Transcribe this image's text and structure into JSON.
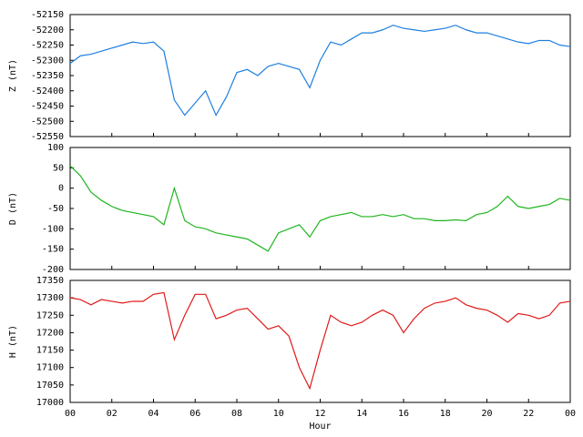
{
  "chart_data": [
    {
      "type": "line",
      "ylabel": "Z (nT)",
      "xlim": [
        0,
        24
      ],
      "ylim": [
        -52550,
        -52150
      ],
      "yticks": [
        -52150,
        -52200,
        -52250,
        -52300,
        -52350,
        -52400,
        -52450,
        -52500,
        -52550
      ],
      "x": [
        0,
        0.5,
        1,
        1.5,
        2,
        2.5,
        3,
        3.5,
        4,
        4.5,
        5,
        5.5,
        6,
        6.5,
        7,
        7.5,
        8,
        8.5,
        9,
        9.5,
        10,
        10.5,
        11,
        11.5,
        12,
        12.5,
        13,
        13.5,
        14,
        14.5,
        15,
        15.5,
        16,
        16.5,
        17,
        17.5,
        18,
        18.5,
        19,
        19.5,
        20,
        20.5,
        21,
        21.5,
        22,
        22.5,
        23,
        23.5,
        24
      ],
      "series": [
        {
          "color": "#1e7fe0",
          "values": [
            -52310,
            -52285,
            -52280,
            -52270,
            -52260,
            -52250,
            -52240,
            -52245,
            -52240,
            -52270,
            -52430,
            -52480,
            -52440,
            -52400,
            -52480,
            -52420,
            -52340,
            -52330,
            -52350,
            -52320,
            -52310,
            -52320,
            -52330,
            -52390,
            -52300,
            -52240,
            -52250,
            -52230,
            -52210,
            -52210,
            -52200,
            -52185,
            -52195,
            -52200,
            -52205,
            -52200,
            -52195,
            -52185,
            -52200,
            -52210,
            -52210,
            -52220,
            -52230,
            -52240,
            -52245,
            -52235,
            -52235,
            -52250,
            -52255
          ]
        }
      ]
    },
    {
      "type": "line",
      "ylabel": "D (nT)",
      "xlim": [
        0,
        24
      ],
      "ylim": [
        -200,
        100
      ],
      "yticks": [
        100,
        50,
        0,
        -50,
        -100,
        -150,
        -200
      ],
      "x": [
        0,
        0.5,
        1,
        1.5,
        2,
        2.5,
        3,
        3.5,
        4,
        4.5,
        5,
        5.5,
        6,
        6.5,
        7,
        7.5,
        8,
        8.5,
        9,
        9.5,
        10,
        10.5,
        11,
        11.5,
        12,
        12.5,
        13,
        13.5,
        14,
        14.5,
        15,
        15.5,
        16,
        16.5,
        17,
        17.5,
        18,
        18.5,
        19,
        19.5,
        20,
        20.5,
        21,
        21.5,
        22,
        22.5,
        23,
        23.5,
        24
      ],
      "series": [
        {
          "color": "#1fb51f",
          "values": [
            55,
            30,
            -10,
            -30,
            -45,
            -55,
            -60,
            -65,
            -70,
            -90,
            0,
            -80,
            -95,
            -100,
            -110,
            -115,
            -120,
            -125,
            -140,
            -155,
            -110,
            -100,
            -90,
            -120,
            -80,
            -70,
            -65,
            -60,
            -70,
            -70,
            -65,
            -70,
            -65,
            -75,
            -75,
            -80,
            -80,
            -78,
            -80,
            -65,
            -60,
            -45,
            -20,
            -45,
            -50,
            -45,
            -40,
            -25,
            -30
          ]
        }
      ]
    },
    {
      "type": "line",
      "ylabel": "H (nT)",
      "xlabel": "Hour",
      "xlim": [
        0,
        24
      ],
      "ylim": [
        17000,
        17350
      ],
      "yticks": [
        17350,
        17300,
        17250,
        17200,
        17150,
        17100,
        17050,
        17000
      ],
      "xticks": [
        {
          "value": 0,
          "label": "00"
        },
        {
          "value": 2,
          "label": "02"
        },
        {
          "value": 4,
          "label": "04"
        },
        {
          "value": 6,
          "label": "06"
        },
        {
          "value": 8,
          "label": "08"
        },
        10,
        12,
        14,
        16,
        18,
        20,
        22,
        {
          "value": 24,
          "label": "00"
        }
      ],
      "x": [
        0,
        0.5,
        1,
        1.5,
        2,
        2.5,
        3,
        3.5,
        4,
        4.5,
        5,
        5.5,
        6,
        6.5,
        7,
        7.5,
        8,
        8.5,
        9,
        9.5,
        10,
        10.5,
        11,
        11.5,
        12,
        12.5,
        13,
        13.5,
        14,
        14.5,
        15,
        15.5,
        16,
        16.5,
        17,
        17.5,
        18,
        18.5,
        19,
        19.5,
        20,
        20.5,
        21,
        21.5,
        22,
        22.5,
        23,
        23.5,
        24
      ],
      "series": [
        {
          "color": "#e01a1a",
          "values": [
            17300,
            17295,
            17280,
            17295,
            17290,
            17285,
            17290,
            17290,
            17310,
            17315,
            17180,
            17250,
            17310,
            17310,
            17240,
            17250,
            17265,
            17270,
            17240,
            17210,
            17220,
            17190,
            17100,
            17040,
            17150,
            17250,
            17230,
            17220,
            17230,
            17250,
            17265,
            17250,
            17200,
            17240,
            17270,
            17285,
            17290,
            17300,
            17280,
            17270,
            17265,
            17250,
            17230,
            17255,
            17250,
            17240,
            17250,
            17285,
            17290
          ]
        }
      ]
    }
  ]
}
